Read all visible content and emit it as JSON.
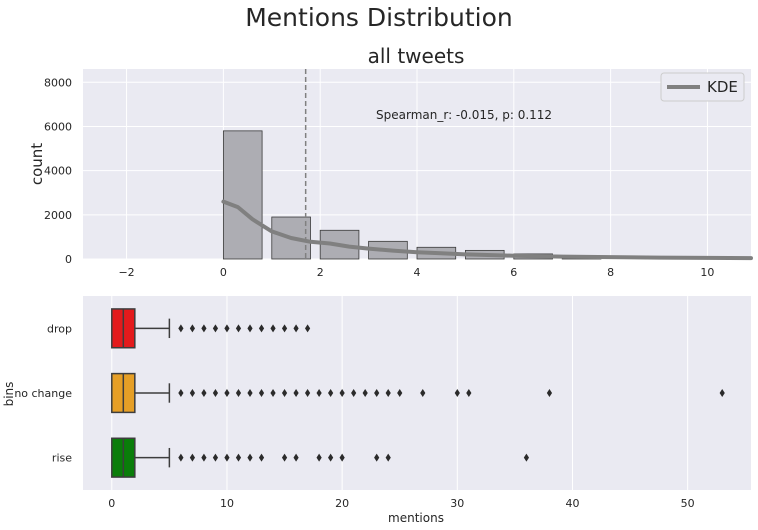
{
  "suptitle": "Mentions Distribution",
  "colors": {
    "axes_bg": "#EAEAF2",
    "grid": "#FFFFFF",
    "hist": "#ADADB3",
    "kde": "#808080",
    "drop": "#E31A1C",
    "no_change": "#E69F26",
    "rise": "#0A7D0A"
  },
  "chart_data": [
    {
      "type": "bar",
      "title": "all tweets",
      "ylabel": "count",
      "xlabel": "",
      "xlim": [
        -2.9,
        10.9
      ],
      "ylim": [
        0,
        8600
      ],
      "xticks": [
        -2,
        0,
        2,
        4,
        6,
        8,
        10
      ],
      "yticks": [
        0,
        2000,
        4000,
        6000,
        8000
      ],
      "grid": true,
      "bin_width": 0.8,
      "bins": [
        {
          "start": 0,
          "count": 5800
        },
        {
          "start": 1,
          "count": 1900
        },
        {
          "start": 2,
          "count": 1300
        },
        {
          "start": 3,
          "count": 800
        },
        {
          "start": 4,
          "count": 530
        },
        {
          "start": 5,
          "count": 390
        },
        {
          "start": 6,
          "count": 230
        },
        {
          "start": 7,
          "count": 130
        }
      ],
      "kde": {
        "name": "KDE",
        "x": [
          0,
          0.3,
          0.6,
          1.0,
          1.4,
          1.8,
          2.2,
          2.6,
          3.0,
          3.5,
          4.0,
          4.5,
          5.0,
          6.0,
          7.0,
          8.0,
          9.0,
          10.0,
          10.9
        ],
        "y": [
          2600,
          2350,
          1800,
          1250,
          950,
          780,
          700,
          560,
          470,
          380,
          310,
          260,
          210,
          150,
          110,
          85,
          65,
          50,
          40
        ]
      },
      "vline": 1.7,
      "annotation": "Spearman_r: -0.015, p: 0.112",
      "legend": {
        "position": "top-right",
        "entries": [
          "KDE"
        ]
      }
    },
    {
      "type": "box",
      "xlabel": "mentions",
      "ylabel": "bins",
      "xlim": [
        -2.5,
        55.5
      ],
      "xticks": [
        0,
        10,
        20,
        30,
        40,
        50
      ],
      "grid": true,
      "categories": [
        "drop",
        "no change",
        "rise"
      ],
      "boxes": [
        {
          "q1": 0,
          "median": 1,
          "q3": 2,
          "whisker_low": 0,
          "whisker_high": 5,
          "outliers": [
            6,
            7,
            8,
            9,
            10,
            11,
            12,
            13,
            14,
            15,
            16,
            17
          ]
        },
        {
          "q1": 0,
          "median": 1,
          "q3": 2,
          "whisker_low": 0,
          "whisker_high": 5,
          "outliers": [
            6,
            7,
            8,
            9,
            10,
            11,
            12,
            13,
            14,
            15,
            16,
            17,
            18,
            19,
            20,
            21,
            22,
            23,
            24,
            25,
            27,
            30,
            31,
            38,
            53
          ]
        },
        {
          "q1": 0,
          "median": 1,
          "q3": 2,
          "whisker_low": 0,
          "whisker_high": 5,
          "outliers": [
            6,
            7,
            8,
            9,
            10,
            11,
            12,
            13,
            15,
            16,
            18,
            19,
            20,
            23,
            24,
            36
          ]
        }
      ]
    }
  ]
}
